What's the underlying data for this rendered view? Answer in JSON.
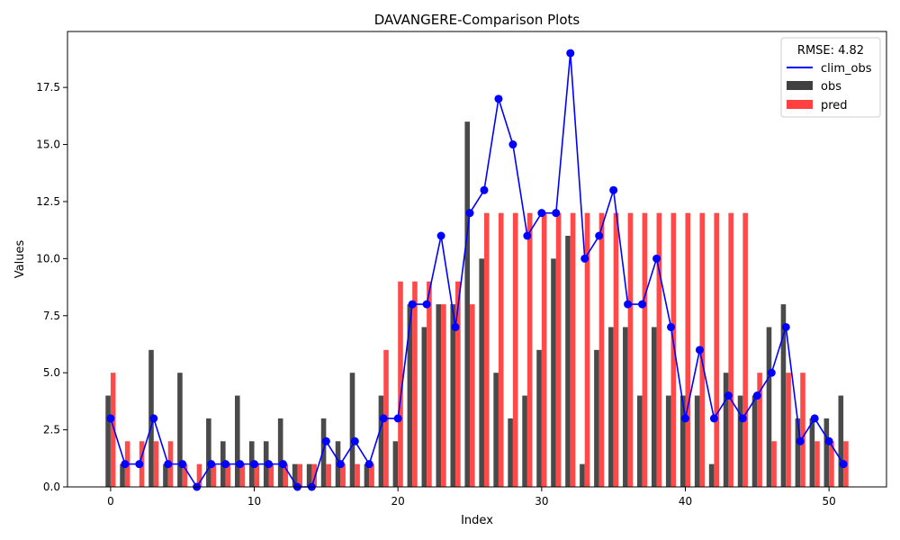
{
  "chart_data": {
    "type": "bar",
    "title": "DAVANGERE-Comparison Plots",
    "xlabel": "Index",
    "ylabel": "Values",
    "xlim": [
      -3,
      54
    ],
    "ylim": [
      0,
      19.95
    ],
    "x_ticks": [
      0,
      10,
      20,
      30,
      40,
      50
    ],
    "x_tick_labels": [
      "0",
      "10",
      "20",
      "30",
      "40",
      "50"
    ],
    "y_ticks": [
      0,
      2.5,
      5,
      7.5,
      10,
      12.5,
      15,
      17.5
    ],
    "y_tick_labels": [
      "0.0",
      "2.5",
      "5.0",
      "7.5",
      "10.0",
      "12.5",
      "15.0",
      "17.5"
    ],
    "grid": false,
    "legend": {
      "title": "RMSE: 4.82",
      "placement": "top-right",
      "entries": [
        "clim_obs",
        "obs",
        "pred"
      ]
    },
    "x": [
      0,
      1,
      2,
      3,
      4,
      5,
      6,
      7,
      8,
      9,
      10,
      11,
      12,
      13,
      14,
      15,
      16,
      17,
      18,
      19,
      20,
      21,
      22,
      23,
      24,
      25,
      26,
      27,
      28,
      29,
      30,
      31,
      32,
      33,
      34,
      35,
      36,
      37,
      38,
      39,
      40,
      41,
      42,
      43,
      44,
      45,
      46,
      47,
      48,
      49,
      50,
      51
    ],
    "series": [
      {
        "name": "obs",
        "type": "bar",
        "color": "#404040",
        "values": [
          4,
          1,
          0,
          6,
          1,
          5,
          0,
          3,
          2,
          4,
          2,
          2,
          3,
          1,
          1,
          3,
          2,
          5,
          1,
          4,
          2,
          8,
          7,
          8,
          8,
          16,
          10,
          5,
          3,
          4,
          6,
          10,
          11,
          1,
          6,
          7,
          7,
          4,
          7,
          4,
          4,
          4,
          1,
          5,
          4,
          4,
          7,
          8,
          3,
          3,
          3,
          4
        ]
      },
      {
        "name": "pred",
        "type": "bar",
        "color": "#ff4040",
        "values": [
          5,
          2,
          2,
          2,
          2,
          1,
          1,
          1,
          1,
          1,
          1,
          1,
          1,
          1,
          1,
          1,
          1,
          1,
          1,
          6,
          9,
          9,
          9,
          8,
          9,
          8,
          12,
          12,
          12,
          12,
          12,
          12,
          12,
          12,
          12,
          12,
          12,
          12,
          12,
          12,
          12,
          12,
          12,
          12,
          12,
          5,
          2,
          5,
          5,
          2,
          2,
          2
        ]
      },
      {
        "name": "clim_obs",
        "type": "line",
        "color": "#0000ff",
        "values": [
          3,
          1,
          1,
          3,
          1,
          1,
          0,
          1,
          1,
          1,
          1,
          1,
          1,
          0,
          0,
          2,
          1,
          2,
          1,
          3,
          3,
          8,
          8,
          11,
          7,
          12,
          13,
          17,
          15,
          11,
          12,
          12,
          19,
          10,
          11,
          13,
          8,
          8,
          10,
          7,
          3,
          6,
          3,
          4,
          3,
          4,
          5,
          7,
          2,
          3,
          2,
          1
        ]
      }
    ]
  }
}
